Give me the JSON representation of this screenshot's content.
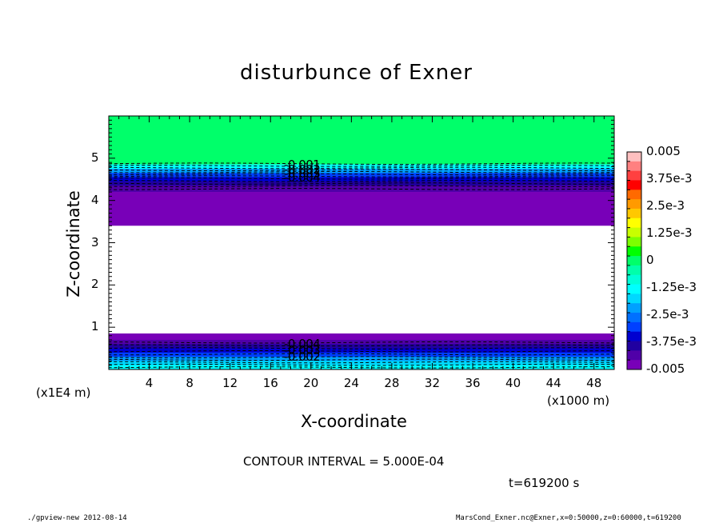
{
  "chart_data": {
    "type": "heatmap",
    "title": "disturbunce of Exner",
    "xlabel": "X-coordinate",
    "ylabel": "Z-coordinate",
    "x_unit": "(x1000 m)",
    "y_unit": "(x1E4 m)",
    "xlim": [
      0,
      50
    ],
    "ylim": [
      0,
      6
    ],
    "x_ticks": [
      "4",
      "8",
      "12",
      "16",
      "20",
      "24",
      "28",
      "32",
      "36",
      "40",
      "44",
      "48"
    ],
    "y_ticks": [
      "1",
      "2",
      "3",
      "4",
      "5"
    ],
    "colorbar": {
      "range": [
        -0.005,
        0.005
      ],
      "labels": [
        "0.005",
        "3.75e-3",
        "2.5e-3",
        "1.25e-3",
        "0",
        "-1.25e-3",
        "-2.5e-3",
        "-3.75e-3",
        "-0.005"
      ],
      "colors": [
        "#ffc0c0",
        "#ff8080",
        "#ff4040",
        "#ff0000",
        "#ff6a00",
        "#ff9a00",
        "#ffc800",
        "#ffff00",
        "#c8ff00",
        "#7cff00",
        "#00ff00",
        "#00ff6a",
        "#00ffaa",
        "#00ffd8",
        "#00ffff",
        "#00d8ff",
        "#00a0ff",
        "#0070ff",
        "#0040ff",
        "#0000d0",
        "#2000a0",
        "#5000a8",
        "#7800b8"
      ]
    },
    "contour_labels_upper": [
      "-0.001",
      "-0.002",
      "-0.003",
      "-0.004"
    ],
    "contour_labels_lower": [
      "-0.004",
      "-0.003",
      "-0.002"
    ],
    "regions": [
      {
        "z_range": [
          4.85,
          6.0
        ],
        "value": 0.0002
      },
      {
        "z_range": [
          4.6,
          4.85
        ],
        "value": -0.002
      },
      {
        "z_range": [
          4.2,
          4.6
        ],
        "value": -0.0045
      },
      {
        "z_range": [
          3.4,
          4.2
        ],
        "value": -0.005
      },
      {
        "z_range": [
          0.85,
          3.4
        ],
        "value": null
      },
      {
        "z_range": [
          0.55,
          0.85
        ],
        "value": -0.005
      },
      {
        "z_range": [
          0.25,
          0.55
        ],
        "value": -0.0035
      },
      {
        "z_range": [
          0.0,
          0.25
        ],
        "value": -0.0015
      }
    ],
    "contour_interval_text": "CONTOUR INTERVAL = 5.000E-04",
    "time_text": "t=619200 s"
  },
  "footer": {
    "left": "./gpview-new  2012-08-14",
    "right": "MarsCond_Exner.nc@Exner,x=0:50000,z=0:60000,t=619200"
  }
}
